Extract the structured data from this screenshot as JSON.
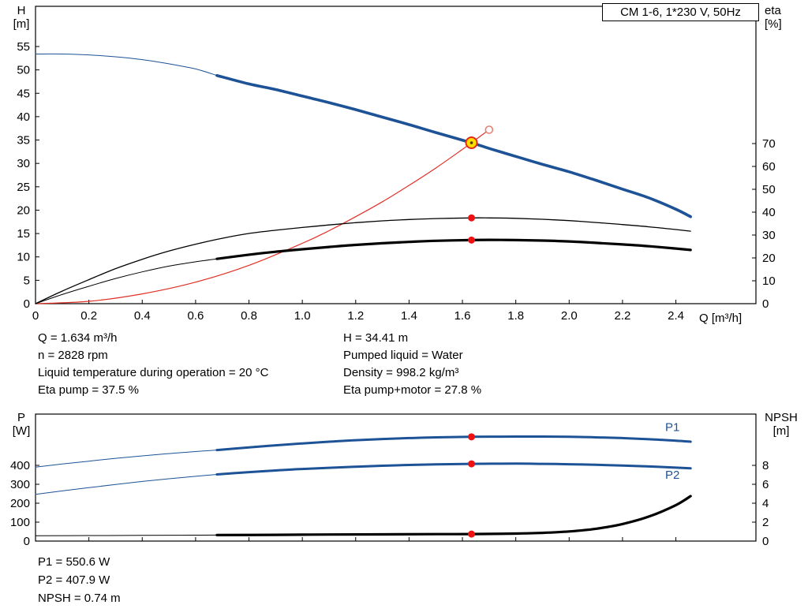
{
  "title_box": {
    "text": "CM 1-6, 1*230 V, 50Hz"
  },
  "axis_corner_labels": {
    "top_left": {
      "line1": "H",
      "line2": "[m]"
    },
    "top_right": {
      "line1": "eta",
      "line2": "[%]"
    },
    "x_axis": {
      "text": "Q [m³/h]"
    },
    "bottom_left": {
      "line1": "P",
      "line2": "[W]"
    },
    "bottom_right": {
      "line1": "NPSH",
      "line2": "[m]"
    }
  },
  "duty_info": {
    "col1": [
      "Q = 1.634 m³/h",
      "n = 2828 rpm",
      "Liquid temperature during operation = 20 °C",
      "Eta pump = 37.5 %"
    ],
    "col2": [
      "H = 34.41 m",
      "Pumped liquid = Water",
      "Density = 998.2 kg/m³",
      "Eta pump+motor = 27.8 %"
    ]
  },
  "power_info": [
    "P1 = 550.6 W",
    "P2 = 407.9 W",
    "NPSH = 0.74 m"
  ],
  "colors": {
    "curve_blue": "#1d5296",
    "curve_red": "#e03127",
    "curve_black": "#000000",
    "dot_red": "#ee1111",
    "duty_fill": "#ffdd00",
    "duty_ring": "#dd2c1e",
    "duty_center": "#5a3c00",
    "open_ring": "#e88078",
    "label_blue": "#1d5296",
    "axis": "#000000"
  },
  "chart_data": [
    {
      "type": "line",
      "id": "top",
      "title": "CM 1-6, 1*230 V, 50Hz",
      "x_axis": {
        "label": "Q [m³/h]",
        "min": 0,
        "max": 2.7,
        "ticks": [
          0,
          0.2,
          0.4,
          0.6,
          0.8,
          1.0,
          1.2,
          1.4,
          1.6,
          1.8,
          2.0,
          2.2,
          2.4
        ],
        "show_labels": true
      },
      "y_left": {
        "label": "H [m]",
        "min": 0,
        "max": 63.6,
        "ticks": [
          0,
          5,
          10,
          15,
          20,
          25,
          30,
          35,
          40,
          45,
          50,
          55
        ]
      },
      "y_right": {
        "label": "eta [%]",
        "min": 0,
        "max": 130,
        "ticks": [
          0,
          10,
          20,
          30,
          40,
          50,
          60,
          70
        ]
      },
      "grid": false,
      "series": [
        {
          "name": "head-curve-out-of-range",
          "axis": "left",
          "color": "#1d5296",
          "width": 1,
          "points": [
            [
              0,
              53.4
            ],
            [
              0.1,
              53.4
            ],
            [
              0.2,
              53.2
            ],
            [
              0.3,
              52.8
            ],
            [
              0.4,
              52.2
            ],
            [
              0.5,
              51.3
            ],
            [
              0.6,
              50.2
            ],
            [
              0.68,
              48.8
            ]
          ]
        },
        {
          "name": "head-curve",
          "axis": "left",
          "color": "#1d5296",
          "width": 3.6,
          "points": [
            [
              0.68,
              48.8
            ],
            [
              0.8,
              47.0
            ],
            [
              0.9,
              45.8
            ],
            [
              1.0,
              44.4
            ],
            [
              1.1,
              43.0
            ],
            [
              1.2,
              41.5
            ],
            [
              1.3,
              39.9
            ],
            [
              1.4,
              38.3
            ],
            [
              1.5,
              36.6
            ],
            [
              1.634,
              34.41
            ],
            [
              1.7,
              33.2
            ],
            [
              1.8,
              31.5
            ],
            [
              1.9,
              29.8
            ],
            [
              2.0,
              28.2
            ],
            [
              2.1,
              26.4
            ],
            [
              2.2,
              24.5
            ],
            [
              2.3,
              22.6
            ],
            [
              2.4,
              20.2
            ],
            [
              2.455,
              18.6
            ]
          ]
        },
        {
          "name": "system-curve",
          "axis": "left",
          "color": "#e03127",
          "width": 1.2,
          "points": [
            [
              0,
              0
            ],
            [
              0.2,
              0.5
            ],
            [
              0.4,
              2.1
            ],
            [
              0.6,
              4.6
            ],
            [
              0.8,
              8.2
            ],
            [
              1.0,
              12.9
            ],
            [
              1.1,
              15.6
            ],
            [
              1.2,
              18.6
            ],
            [
              1.3,
              21.8
            ],
            [
              1.4,
              25.3
            ],
            [
              1.5,
              29.0
            ],
            [
              1.6,
              33.0
            ],
            [
              1.634,
              34.41
            ],
            [
              1.7,
              37.2
            ]
          ]
        },
        {
          "name": "eta-pump-curve",
          "axis": "right",
          "color": "#000000",
          "width": 1.3,
          "points": [
            [
              0,
              0
            ],
            [
              0.1,
              5.5
            ],
            [
              0.2,
              10.5
            ],
            [
              0.3,
              15.3
            ],
            [
              0.4,
              19.4
            ],
            [
              0.5,
              23.0
            ],
            [
              0.6,
              26.0
            ],
            [
              0.7,
              28.6
            ],
            [
              0.8,
              30.7
            ],
            [
              0.9,
              32.1
            ],
            [
              1.0,
              33.3
            ],
            [
              1.1,
              34.4
            ],
            [
              1.2,
              35.4
            ],
            [
              1.3,
              36.2
            ],
            [
              1.4,
              36.8
            ],
            [
              1.5,
              37.2
            ],
            [
              1.634,
              37.5
            ],
            [
              1.7,
              37.5
            ],
            [
              1.8,
              37.3
            ],
            [
              1.9,
              36.9
            ],
            [
              2.0,
              36.3
            ],
            [
              2.1,
              35.5
            ],
            [
              2.2,
              34.6
            ],
            [
              2.3,
              33.6
            ],
            [
              2.4,
              32.4
            ],
            [
              2.455,
              31.7
            ]
          ]
        },
        {
          "name": "eta-pump-motor-out-of-range",
          "axis": "right",
          "color": "#000000",
          "width": 1,
          "points": [
            [
              0,
              0
            ],
            [
              0.1,
              4.0
            ],
            [
              0.2,
              7.6
            ],
            [
              0.3,
              11.0
            ],
            [
              0.4,
              13.9
            ],
            [
              0.5,
              16.4
            ],
            [
              0.6,
              18.3
            ],
            [
              0.68,
              19.6
            ]
          ]
        },
        {
          "name": "eta-pump-motor-curve",
          "axis": "right",
          "color": "#000000",
          "width": 3.2,
          "points": [
            [
              0.68,
              19.6
            ],
            [
              0.8,
              21.4
            ],
            [
              0.9,
              22.7
            ],
            [
              1.0,
              23.8
            ],
            [
              1.1,
              24.8
            ],
            [
              1.2,
              25.7
            ],
            [
              1.3,
              26.4
            ],
            [
              1.4,
              27.0
            ],
            [
              1.5,
              27.5
            ],
            [
              1.634,
              27.8
            ],
            [
              1.7,
              27.9
            ],
            [
              1.8,
              27.8
            ],
            [
              1.9,
              27.6
            ],
            [
              2.0,
              27.2
            ],
            [
              2.1,
              26.6
            ],
            [
              2.2,
              25.9
            ],
            [
              2.3,
              25.1
            ],
            [
              2.4,
              24.1
            ],
            [
              2.455,
              23.5
            ]
          ]
        }
      ],
      "markers": [
        {
          "name": "duty-point",
          "style": "duty",
          "axis": "left",
          "q": 1.634,
          "v": 34.41
        },
        {
          "name": "rated-point-open",
          "style": "open",
          "axis": "left",
          "q": 1.7,
          "v": 37.2
        },
        {
          "name": "eta-pump-point",
          "style": "dot",
          "axis": "right",
          "q": 1.634,
          "v": 37.5
        },
        {
          "name": "eta-pump-motor-point",
          "style": "dot",
          "axis": "right",
          "q": 1.634,
          "v": 27.8
        }
      ],
      "curve_labels": []
    },
    {
      "type": "line",
      "id": "bottom",
      "title": "",
      "x_axis": {
        "label": "",
        "min": 0,
        "max": 2.7,
        "ticks": [
          0,
          0.2,
          0.4,
          0.6,
          0.8,
          1.0,
          1.2,
          1.4,
          1.6,
          1.8,
          2.0,
          2.2,
          2.4
        ],
        "show_labels": false
      },
      "y_left": {
        "label": "P [W]",
        "min": 0,
        "max": 670.8,
        "ticks": [
          0,
          100,
          200,
          300,
          400
        ]
      },
      "y_right": {
        "label": "NPSH [m]",
        "min": 0,
        "max": 13.42,
        "ticks": [
          0,
          2,
          4,
          6,
          8
        ]
      },
      "grid": false,
      "series": [
        {
          "name": "p1-curve-out-of-range",
          "axis": "left",
          "color": "#1d5296",
          "width": 1,
          "points": [
            [
              0,
              391
            ],
            [
              0.1,
              407
            ],
            [
              0.2,
              422
            ],
            [
              0.3,
              437
            ],
            [
              0.4,
              450
            ],
            [
              0.5,
              462
            ],
            [
              0.6,
              473
            ],
            [
              0.68,
              481
            ]
          ]
        },
        {
          "name": "p1-curve",
          "axis": "left",
          "color": "#1d5296",
          "width": 3,
          "points": [
            [
              0.68,
              481
            ],
            [
              0.8,
              495
            ],
            [
              0.9,
              506
            ],
            [
              1.0,
              516
            ],
            [
              1.1,
              525
            ],
            [
              1.2,
              533
            ],
            [
              1.3,
              539
            ],
            [
              1.4,
              544
            ],
            [
              1.5,
              548
            ],
            [
              1.634,
              550.6
            ],
            [
              1.8,
              552
            ],
            [
              1.9,
              552
            ],
            [
              2.0,
              551
            ],
            [
              2.1,
              548
            ],
            [
              2.2,
              544
            ],
            [
              2.3,
              538
            ],
            [
              2.4,
              530
            ],
            [
              2.455,
              525
            ]
          ]
        },
        {
          "name": "p2-curve-out-of-range",
          "axis": "left",
          "color": "#1d5296",
          "width": 1,
          "points": [
            [
              0,
              247
            ],
            [
              0.1,
              265
            ],
            [
              0.2,
              282
            ],
            [
              0.3,
              299
            ],
            [
              0.4,
              315
            ],
            [
              0.5,
              329
            ],
            [
              0.6,
              342
            ],
            [
              0.68,
              352
            ]
          ]
        },
        {
          "name": "p2-curve",
          "axis": "left",
          "color": "#1d5296",
          "width": 3,
          "points": [
            [
              0.68,
              352
            ],
            [
              0.8,
              364
            ],
            [
              0.9,
              373
            ],
            [
              1.0,
              381
            ],
            [
              1.1,
              387
            ],
            [
              1.2,
              393
            ],
            [
              1.3,
              398
            ],
            [
              1.4,
              402
            ],
            [
              1.5,
              405
            ],
            [
              1.634,
              407.9
            ],
            [
              1.8,
              409
            ],
            [
              1.9,
              408
            ],
            [
              2.0,
              406
            ],
            [
              2.1,
              403
            ],
            [
              2.2,
              399
            ],
            [
              2.3,
              394
            ],
            [
              2.4,
              388
            ],
            [
              2.455,
              384
            ]
          ]
        },
        {
          "name": "npsh-curve-out-of-range",
          "axis": "right",
          "color": "#000000",
          "width": 1,
          "points": [
            [
              0,
              0.56
            ],
            [
              0.2,
              0.58
            ],
            [
              0.4,
              0.6
            ],
            [
              0.55,
              0.62
            ],
            [
              0.68,
              0.63
            ]
          ]
        },
        {
          "name": "npsh-curve",
          "axis": "right",
          "color": "#000000",
          "width": 3.2,
          "points": [
            [
              0.68,
              0.63
            ],
            [
              0.9,
              0.66
            ],
            [
              1.1,
              0.69
            ],
            [
              1.3,
              0.71
            ],
            [
              1.5,
              0.73
            ],
            [
              1.634,
              0.74
            ],
            [
              1.8,
              0.79
            ],
            [
              1.9,
              0.87
            ],
            [
              2.0,
              1.02
            ],
            [
              2.1,
              1.3
            ],
            [
              2.2,
              1.8
            ],
            [
              2.3,
              2.6
            ],
            [
              2.4,
              3.8
            ],
            [
              2.455,
              4.75
            ]
          ]
        }
      ],
      "markers": [
        {
          "name": "p1-point",
          "style": "dot",
          "axis": "left",
          "q": 1.634,
          "v": 550.6
        },
        {
          "name": "p2-point",
          "style": "dot",
          "axis": "left",
          "q": 1.634,
          "v": 407.9
        },
        {
          "name": "npsh-point",
          "style": "dot",
          "axis": "right",
          "q": 1.634,
          "v": 0.74
        }
      ],
      "curve_labels": [
        {
          "text": "P1",
          "axis": "left",
          "q": 2.36,
          "v": 582
        },
        {
          "text": "P2",
          "axis": "left",
          "q": 2.36,
          "v": 330
        }
      ]
    }
  ]
}
